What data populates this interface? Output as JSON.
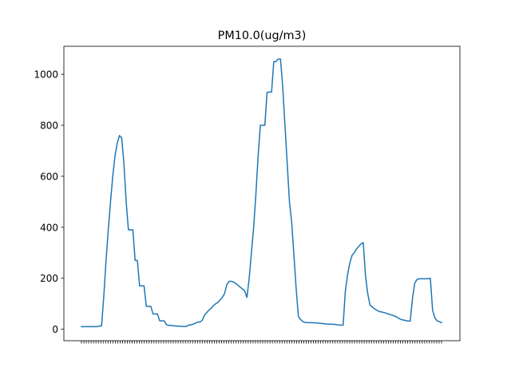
{
  "chart_data": {
    "type": "line",
    "title": "PM10.0(ug/m3)",
    "xlabel": "",
    "ylabel": "",
    "ylim": [
      -45,
      1110
    ],
    "yticks": [
      0,
      200,
      400,
      600,
      800,
      1000
    ],
    "x_tick_count": 150,
    "x_tick_labels_note": "x tick labels are overlapping and illegible",
    "grid": false,
    "series": [
      {
        "color": "#1f77b4",
        "values": [
          10,
          10,
          10,
          10,
          10,
          10,
          10,
          10,
          12,
          14,
          130,
          270,
          390,
          500,
          600,
          680,
          730,
          760,
          750,
          650,
          500,
          390,
          390,
          390,
          270,
          270,
          170,
          170,
          170,
          90,
          90,
          90,
          60,
          60,
          60,
          33,
          33,
          33,
          18,
          15,
          15,
          14,
          13,
          12,
          12,
          11,
          11,
          11,
          17,
          17,
          20,
          24,
          28,
          28,
          35,
          55,
          65,
          75,
          82,
          92,
          100,
          105,
          115,
          125,
          140,
          175,
          188,
          188,
          185,
          180,
          172,
          165,
          158,
          150,
          125,
          200,
          300,
          400,
          530,
          680,
          800,
          800,
          800,
          930,
          930,
          930,
          1050,
          1050,
          1060,
          1060,
          950,
          800,
          650,
          500,
          420,
          290,
          160,
          50,
          38,
          30,
          27,
          26,
          26,
          26,
          25,
          25,
          24,
          23,
          22,
          21,
          20,
          20,
          20,
          19,
          18,
          17,
          16,
          16,
          150,
          215,
          260,
          290,
          300,
          315,
          325,
          335,
          340,
          210,
          140,
          95,
          88,
          80,
          75,
          70,
          68,
          66,
          64,
          60,
          58,
          55,
          52,
          48,
          42,
          38,
          36,
          34,
          32,
          32,
          120,
          180,
          195,
          198,
          198,
          198,
          198,
          198,
          200,
          75,
          45,
          33,
          30,
          26
        ]
      }
    ]
  }
}
